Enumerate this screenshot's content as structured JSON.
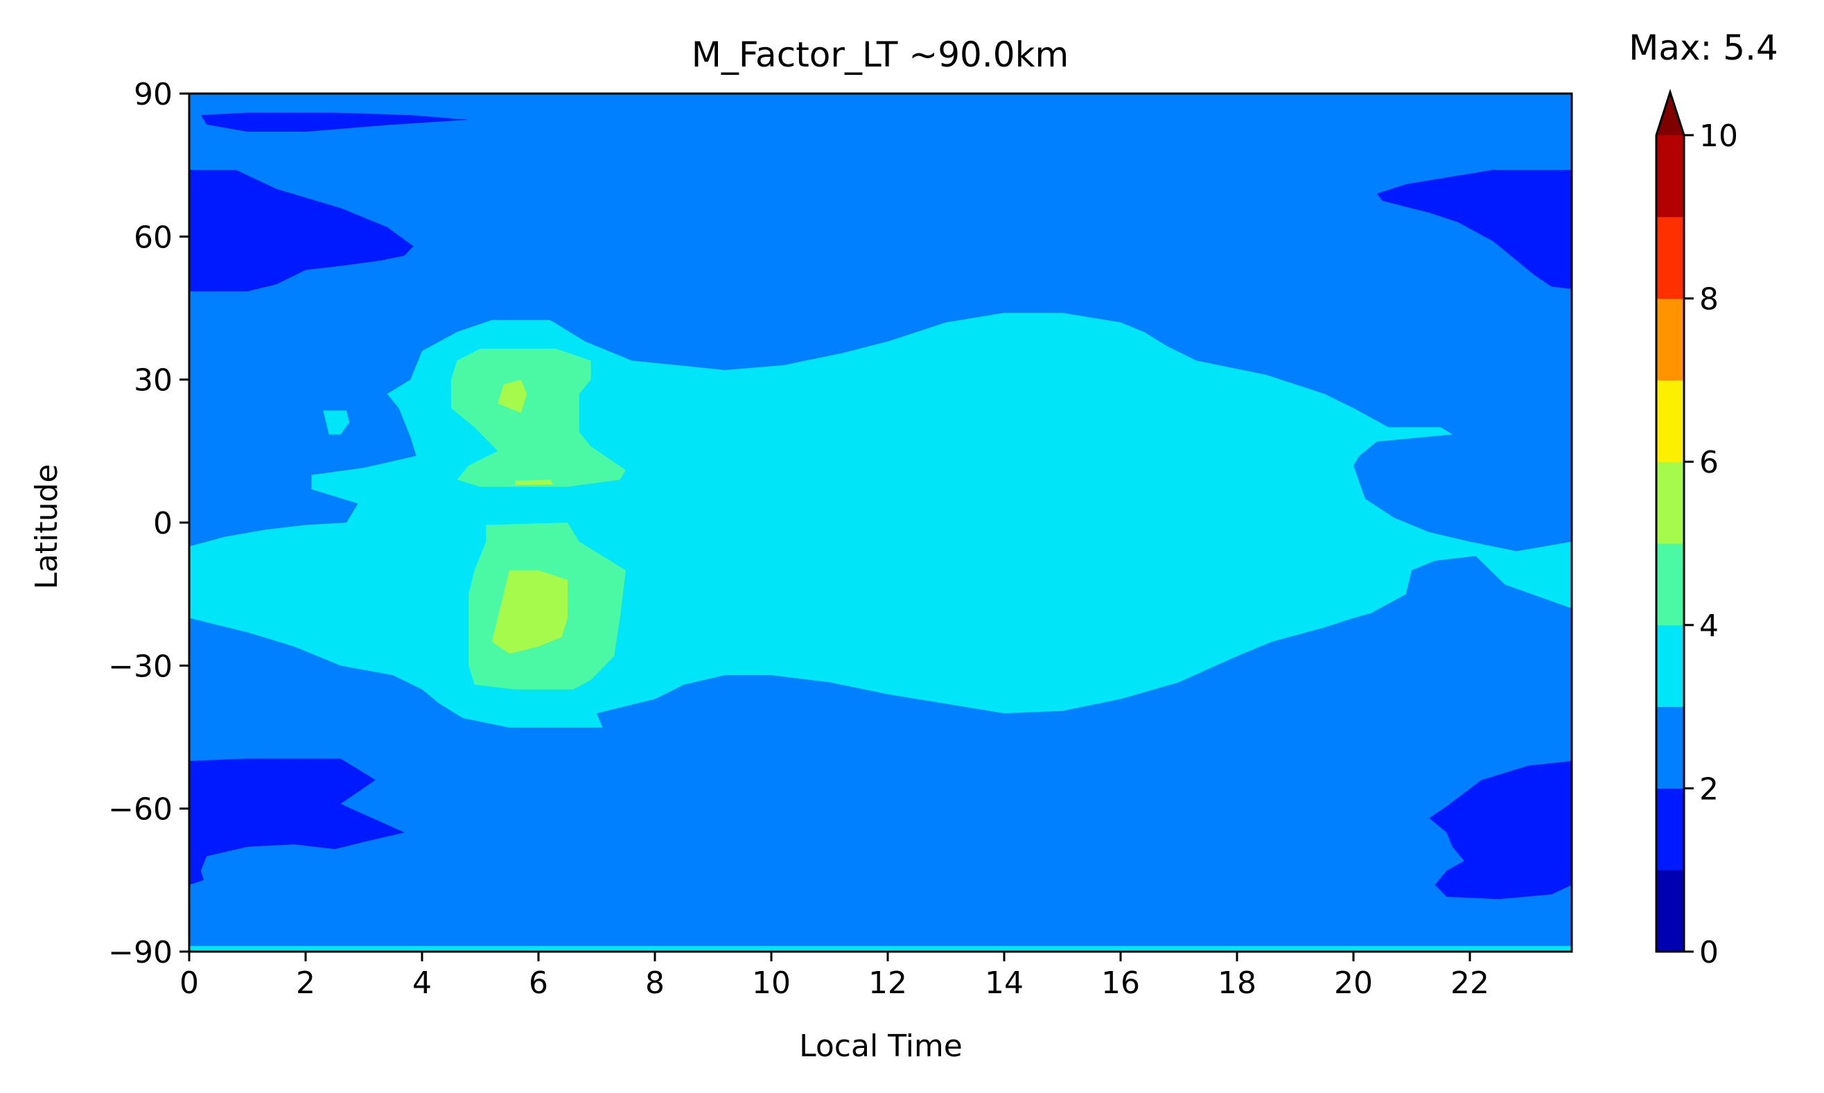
{
  "chart_data": {
    "type": "contourf",
    "title": "M_Factor_LT ~90.0km",
    "xlabel": "Local Time",
    "ylabel": "Latitude",
    "xlim": [
      0,
      23.75
    ],
    "ylim": [
      -90,
      90
    ],
    "x_ticks": [
      0,
      2,
      4,
      6,
      8,
      10,
      12,
      14,
      16,
      18,
      20,
      22
    ],
    "x_tick_labels": [
      "0",
      "2",
      "4",
      "6",
      "8",
      "10",
      "12",
      "14",
      "16",
      "18",
      "20",
      "22"
    ],
    "y_ticks": [
      90,
      60,
      30,
      0,
      -30,
      -60,
      -90
    ],
    "y_tick_labels": [
      "90",
      "60",
      "30",
      "0",
      "−30",
      "−60",
      "−90"
    ],
    "colorbar": {
      "annotation": "Max: 5.4",
      "range": [
        0,
        10
      ],
      "extend": "max",
      "ticks": [
        0,
        2,
        4,
        6,
        8,
        10
      ],
      "tick_labels": [
        "0",
        "2",
        "4",
        "6",
        "8",
        "10"
      ],
      "levels": [
        {
          "from": 0,
          "to": 1,
          "color": "#0000b3"
        },
        {
          "from": 1,
          "to": 2,
          "color": "#001aff"
        },
        {
          "from": 2,
          "to": 3,
          "color": "#0080ff"
        },
        {
          "from": 3,
          "to": 4,
          "color": "#00e5f8"
        },
        {
          "from": 4,
          "to": 5,
          "color": "#4bf9a4"
        },
        {
          "from": 5,
          "to": 6,
          "color": "#a6fa4c"
        },
        {
          "from": 6,
          "to": 7,
          "color": "#fcf000"
        },
        {
          "from": 7,
          "to": 8,
          "color": "#ff9400"
        },
        {
          "from": 8,
          "to": 9,
          "color": "#ff3000"
        },
        {
          "from": 9,
          "to": 10,
          "color": "#b30000"
        }
      ],
      "extend_color": "#800000"
    },
    "background_level_color": "#0080ff",
    "regions": [
      {
        "name": "band-1-2-north-polar-west",
        "level": "1-2",
        "color": "#001aff",
        "points": [
          [
            0,
            74
          ],
          [
            0.8,
            74
          ],
          [
            1.5,
            70
          ],
          [
            2.6,
            66
          ],
          [
            3.4,
            62
          ],
          [
            3.85,
            58
          ],
          [
            3.7,
            56
          ],
          [
            3.3,
            55
          ],
          [
            2.7,
            54
          ],
          [
            2,
            53
          ],
          [
            1.5,
            50
          ],
          [
            1,
            48.5
          ],
          [
            0,
            48.5
          ]
        ]
      },
      {
        "name": "band-1-2-north-strip",
        "level": "1-2",
        "color": "#001aff",
        "points": [
          [
            0.2,
            85.5
          ],
          [
            1,
            86
          ],
          [
            2.5,
            86
          ],
          [
            3.8,
            85.5
          ],
          [
            4.8,
            84.5
          ],
          [
            3.5,
            83.5
          ],
          [
            2,
            82
          ],
          [
            1,
            82
          ],
          [
            0.3,
            83.5
          ]
        ]
      },
      {
        "name": "band-1-2-north-polar-east",
        "level": "1-2",
        "color": "#001aff",
        "points": [
          [
            23.75,
            74
          ],
          [
            22.4,
            74
          ],
          [
            20.9,
            71
          ],
          [
            20.4,
            69
          ],
          [
            20.5,
            67.5
          ],
          [
            21.3,
            65
          ],
          [
            21.8,
            63
          ],
          [
            22.4,
            59
          ],
          [
            22.7,
            56
          ],
          [
            23.1,
            52
          ],
          [
            23.4,
            49.5
          ],
          [
            23.75,
            49
          ]
        ]
      },
      {
        "name": "band-1-2-south-polar-west",
        "level": "1-2",
        "color": "#001aff",
        "points": [
          [
            0,
            -50
          ],
          [
            1,
            -49.5
          ],
          [
            2.6,
            -49.5
          ],
          [
            3.2,
            -54
          ],
          [
            2.6,
            -59
          ],
          [
            3.7,
            -65
          ],
          [
            3,
            -67
          ],
          [
            2.5,
            -68.5
          ],
          [
            1.8,
            -67.5
          ],
          [
            1,
            -68
          ],
          [
            0.3,
            -70
          ],
          [
            0.2,
            -73
          ],
          [
            0.25,
            -75
          ],
          [
            0,
            -76
          ]
        ]
      },
      {
        "name": "band-1-2-south-polar-east",
        "level": "1-2",
        "color": "#001aff",
        "points": [
          [
            23.75,
            -50
          ],
          [
            23,
            -51
          ],
          [
            22.2,
            -54
          ],
          [
            21.6,
            -59.5
          ],
          [
            21.3,
            -62
          ],
          [
            21.6,
            -65
          ],
          [
            21.7,
            -68
          ],
          [
            21.9,
            -71
          ],
          [
            21.6,
            -73
          ],
          [
            21.4,
            -76
          ],
          [
            21.6,
            -78.5
          ],
          [
            22.5,
            -79
          ],
          [
            23.4,
            -78
          ],
          [
            23.75,
            -76
          ]
        ]
      },
      {
        "name": "band-3-4-main-blob",
        "level": "3-4",
        "color": "#00e5f8",
        "points": [
          [
            0,
            -5
          ],
          [
            0.6,
            -3
          ],
          [
            1.3,
            -1.5
          ],
          [
            2,
            -0.5
          ],
          [
            2.7,
            0
          ],
          [
            2.9,
            4
          ],
          [
            2.1,
            7
          ],
          [
            2.1,
            10
          ],
          [
            3,
            11.5
          ],
          [
            3.9,
            14
          ],
          [
            3.8,
            18
          ],
          [
            3.6,
            24
          ],
          [
            3.4,
            27
          ],
          [
            3.8,
            30
          ],
          [
            4,
            36
          ],
          [
            4.6,
            40
          ],
          [
            5.2,
            42.5
          ],
          [
            6.2,
            42.5
          ],
          [
            6.8,
            38
          ],
          [
            7.6,
            34
          ],
          [
            8.4,
            33
          ],
          [
            9.2,
            32
          ],
          [
            10.2,
            33
          ],
          [
            11.2,
            35.5
          ],
          [
            12,
            38
          ],
          [
            13,
            42
          ],
          [
            14,
            44
          ],
          [
            15,
            44
          ],
          [
            16,
            42
          ],
          [
            16.4,
            40
          ],
          [
            16.8,
            37
          ],
          [
            17.3,
            34
          ],
          [
            18.5,
            31
          ],
          [
            19.5,
            27
          ],
          [
            20,
            24
          ],
          [
            20.6,
            20
          ],
          [
            21.5,
            20
          ],
          [
            21.7,
            18.5
          ],
          [
            20.4,
            17
          ],
          [
            20.1,
            14
          ],
          [
            20,
            12
          ],
          [
            20.2,
            5
          ],
          [
            20.7,
            1
          ],
          [
            21.3,
            -2
          ],
          [
            22,
            -4
          ],
          [
            22.8,
            -6
          ],
          [
            23.75,
            -4
          ],
          [
            23.75,
            -18
          ],
          [
            22.6,
            -13
          ],
          [
            22.1,
            -7
          ],
          [
            21.4,
            -8
          ],
          [
            21,
            -10
          ],
          [
            20.9,
            -15
          ],
          [
            20.3,
            -19
          ],
          [
            20,
            -20
          ],
          [
            19.5,
            -22
          ],
          [
            18.6,
            -25
          ],
          [
            18,
            -28
          ],
          [
            17,
            -33.5
          ],
          [
            16,
            -37
          ],
          [
            15,
            -39.5
          ],
          [
            14,
            -40
          ],
          [
            13,
            -38
          ],
          [
            12,
            -36
          ],
          [
            11,
            -33.5
          ],
          [
            10,
            -32
          ],
          [
            9.2,
            -32
          ],
          [
            8.5,
            -34
          ],
          [
            8,
            -37
          ],
          [
            7,
            -40
          ],
          [
            7.1,
            -43
          ],
          [
            5.5,
            -43
          ],
          [
            4.7,
            -41
          ],
          [
            4.3,
            -38
          ],
          [
            4,
            -35
          ],
          [
            3.5,
            -32
          ],
          [
            2.6,
            -30
          ],
          [
            1.8,
            -26
          ],
          [
            1,
            -23
          ],
          [
            0,
            -20
          ]
        ]
      },
      {
        "name": "band-3-4-ne-notch",
        "level": "3-4",
        "color": "#00e5f8",
        "points": [
          [
            2.3,
            23.5
          ],
          [
            2.7,
            23.5
          ],
          [
            2.75,
            21
          ],
          [
            2.6,
            18.5
          ],
          [
            2.4,
            18.5
          ],
          [
            2.35,
            21
          ]
        ]
      },
      {
        "name": "band-3-4-south-edge",
        "level": "3-4",
        "color": "#00e5f8",
        "points": [
          [
            0,
            -88.8
          ],
          [
            23.75,
            -88.8
          ],
          [
            23.75,
            -90
          ],
          [
            0,
            -90
          ]
        ]
      },
      {
        "name": "band-4-5-north-blob",
        "level": "4-5",
        "color": "#4bf9a4",
        "points": [
          [
            5,
            36.5
          ],
          [
            6.3,
            36.5
          ],
          [
            6.9,
            34
          ],
          [
            6.9,
            30
          ],
          [
            6.7,
            27
          ],
          [
            6.7,
            19
          ],
          [
            6.9,
            16
          ],
          [
            7.5,
            11
          ],
          [
            7.4,
            9
          ],
          [
            6.5,
            7.5
          ],
          [
            5,
            7.5
          ],
          [
            4.6,
            9
          ],
          [
            4.8,
            12
          ],
          [
            5.3,
            15
          ],
          [
            4.9,
            20
          ],
          [
            4.5,
            24
          ],
          [
            4.5,
            30
          ],
          [
            4.6,
            34
          ]
        ]
      },
      {
        "name": "band-4-5-south-blob",
        "level": "4-5",
        "color": "#4bf9a4",
        "points": [
          [
            5.1,
            -0.5
          ],
          [
            6.5,
            0
          ],
          [
            6.7,
            -4
          ],
          [
            7.5,
            -10
          ],
          [
            7.4,
            -20
          ],
          [
            7.3,
            -28
          ],
          [
            6.9,
            -33
          ],
          [
            6.6,
            -35
          ],
          [
            5.6,
            -35
          ],
          [
            4.9,
            -34
          ],
          [
            4.8,
            -30
          ],
          [
            4.8,
            -20
          ],
          [
            4.8,
            -15
          ],
          [
            4.9,
            -10
          ],
          [
            5.1,
            -4
          ]
        ]
      },
      {
        "name": "band-5-6-north-spot",
        "level": "5-6",
        "color": "#a6fa4c",
        "points": [
          [
            5.4,
            29
          ],
          [
            5.7,
            30
          ],
          [
            5.8,
            27
          ],
          [
            5.7,
            23
          ],
          [
            5.3,
            25
          ]
        ]
      },
      {
        "name": "band-5-6-north-sliver",
        "level": "5-6",
        "color": "#a6fa4c",
        "points": [
          [
            5.6,
            8.8
          ],
          [
            6.2,
            9
          ],
          [
            6.25,
            8
          ],
          [
            5.6,
            7.9
          ]
        ]
      },
      {
        "name": "band-5-6-south-spot",
        "level": "5-6",
        "color": "#a6fa4c",
        "points": [
          [
            5.5,
            -10
          ],
          [
            6,
            -10
          ],
          [
            6.5,
            -12
          ],
          [
            6.5,
            -20
          ],
          [
            6.4,
            -24
          ],
          [
            6,
            -26
          ],
          [
            5.5,
            -27.5
          ],
          [
            5.2,
            -25
          ],
          [
            5.3,
            -20
          ],
          [
            5.4,
            -15
          ]
        ]
      }
    ]
  }
}
